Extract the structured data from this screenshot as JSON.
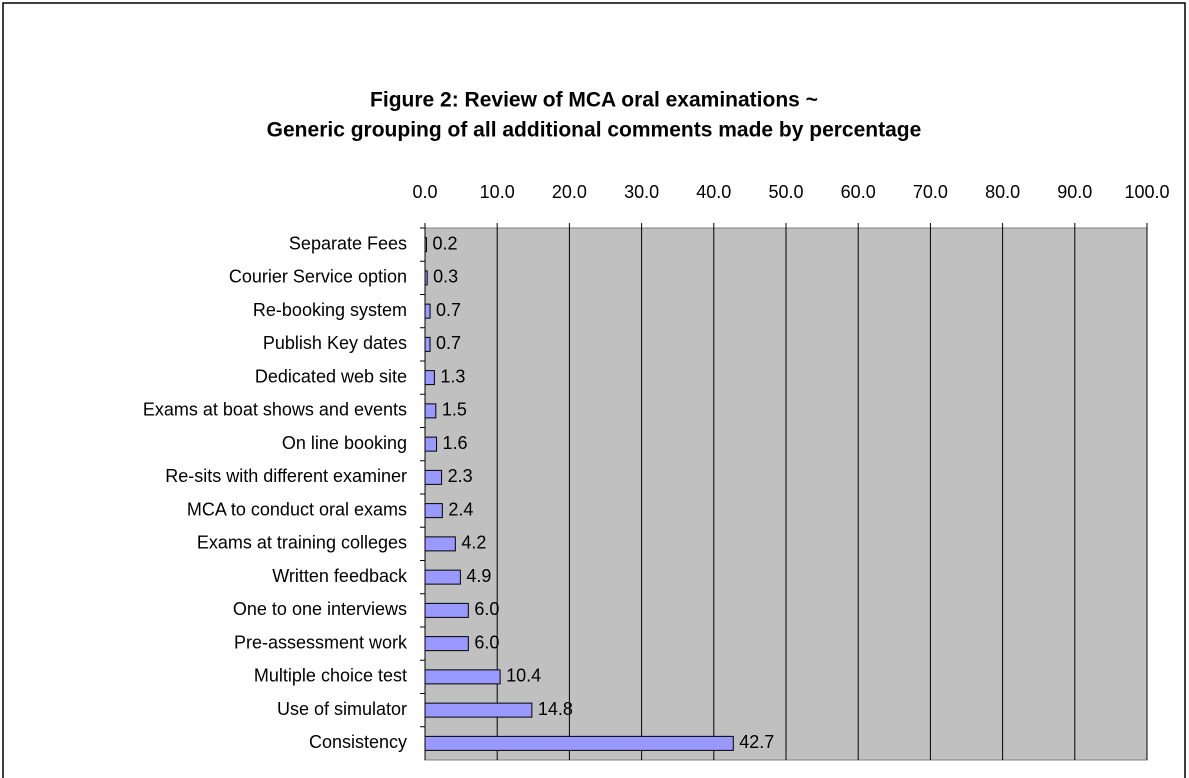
{
  "chart_data": {
    "type": "bar",
    "orientation": "horizontal",
    "title": [
      "Figure 2: Review of MCA oral examinations ~",
      "Generic grouping of all additional comments made by percentage"
    ],
    "categories": [
      "Separate Fees",
      "Courier Service option",
      "Re-booking system",
      "Publish Key dates",
      "Dedicated web site",
      "Exams at boat shows and events",
      "On line booking",
      "Re-sits with different examiner",
      "MCA to conduct oral exams",
      "Exams at training colleges",
      "Written feedback",
      "One to one interviews",
      "Pre-assessment work",
      "Multiple choice test",
      "Use of simulator",
      "Consistency"
    ],
    "values": [
      0.2,
      0.3,
      0.7,
      0.7,
      1.3,
      1.5,
      1.6,
      2.3,
      2.4,
      4.2,
      4.9,
      6.0,
      6.0,
      10.4,
      14.8,
      42.7
    ],
    "value_labels": [
      "0.2",
      "0.3",
      "0.7",
      "0.7",
      "1.3",
      "1.5",
      "1.6",
      "2.3",
      "2.4",
      "4.2",
      "4.9",
      "6.0",
      "6.0",
      "10.4",
      "14.8",
      "42.7"
    ],
    "color": "#9999ff",
    "xlim": [
      0,
      100
    ],
    "xticks": [
      {
        "value": 0,
        "label": "0.0"
      },
      {
        "value": 10,
        "label": "10.0"
      },
      {
        "value": 20,
        "label": "20.0"
      },
      {
        "value": 30,
        "label": "30.0"
      },
      {
        "value": 40,
        "label": "40.0"
      },
      {
        "value": 50,
        "label": "50.0"
      },
      {
        "value": 60,
        "label": "60.0"
      },
      {
        "value": 70,
        "label": "70.0"
      },
      {
        "value": 80,
        "label": "80.0"
      },
      {
        "value": 90,
        "label": "90.0"
      },
      {
        "value": 100,
        "label": "100.0"
      }
    ],
    "grid": true
  }
}
